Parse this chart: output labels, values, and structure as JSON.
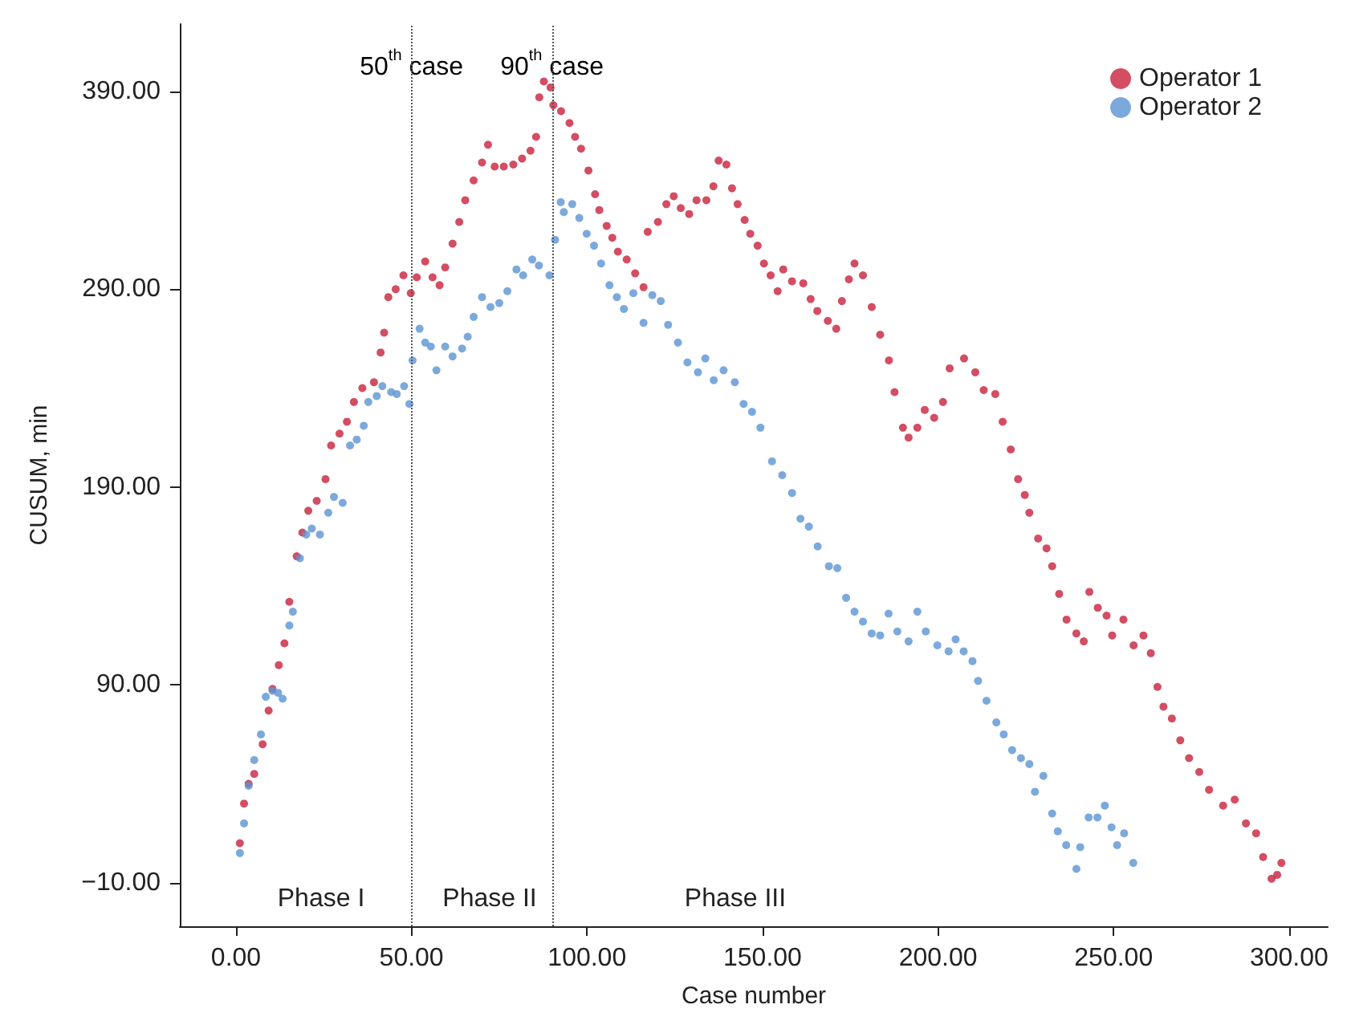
{
  "chart_data": {
    "type": "scatter",
    "xlabel": "Case number",
    "ylabel": "CUSUM, min",
    "xlim": [
      -16,
      311
    ],
    "ylim": [
      -32,
      424
    ],
    "xticks": [
      {
        "value": 0,
        "label": "0.00"
      },
      {
        "value": 50,
        "label": "50.00"
      },
      {
        "value": 100,
        "label": "100.00"
      },
      {
        "value": 150,
        "label": "150.00"
      },
      {
        "value": 200,
        "label": "200.00"
      },
      {
        "value": 250,
        "label": "250.00"
      },
      {
        "value": 300,
        "label": "300.00"
      }
    ],
    "yticks": [
      {
        "value": -10,
        "label": "−10.00"
      },
      {
        "value": 90,
        "label": "90.00"
      },
      {
        "value": 190,
        "label": "190.00"
      },
      {
        "value": 290,
        "label": "290.00"
      },
      {
        "value": 390,
        "label": "390.00"
      }
    ],
    "grid": false,
    "legend": "top right",
    "marker": "circle",
    "ref_lines": [
      {
        "axis": "x",
        "value": 50,
        "label": "50$^{th}$ case",
        "color": "#555555",
        "line_style": "dotted"
      },
      {
        "axis": "x",
        "value": 90,
        "label": "90$^{th}$ case",
        "color": "#555555",
        "line_style": "dotted"
      }
    ],
    "annotations": [
      "Phase I",
      "Phase II",
      "Phase III"
    ],
    "series": [
      {
        "name": "Operator 1",
        "color": "#c8203c",
        "x": [
          1.1,
          2.3,
          3.6,
          5.2,
          7.6,
          9.3,
          10.4,
          12.2,
          13.8,
          15.2,
          17.3,
          18.9,
          20.6,
          23,
          25.5,
          27.1,
          29.5,
          31.6,
          33.6,
          36,
          39.3,
          41.2,
          42.2,
          43.4,
          45.5,
          47.7,
          49.8,
          51.5,
          53.9,
          56,
          58,
          59.6,
          61.7,
          63.6,
          65.3,
          67.7,
          70.1,
          71.8,
          73.7,
          76.3,
          79,
          81.5,
          83.9,
          85.5,
          86.4,
          87.7,
          89.6,
          90.4,
          92.6,
          95,
          96.6,
          98.3,
          100.4,
          102.3,
          103.5,
          105.6,
          107.2,
          108.8,
          111.3,
          113.7,
          116.1,
          117.3,
          120.2,
          122.6,
          124.7,
          126.7,
          129.1,
          131.2,
          134,
          136,
          137.5,
          139.7,
          141.3,
          142.9,
          144.9,
          146.5,
          148.6,
          150.4,
          152.3,
          154.3,
          155.9,
          158.4,
          161.6,
          163.7,
          165.6,
          168.6,
          171,
          172.6,
          174.6,
          176.2,
          178.6,
          181.1,
          183.5,
          186,
          187.6,
          190,
          191.6,
          194.1,
          196.2,
          198.9,
          201.4,
          203.3,
          207.4,
          210.6,
          213,
          216.3,
          218.4,
          220.7,
          222.8,
          224.7,
          226,
          228.5,
          230.9,
          232.5,
          234.5,
          236.6,
          239.4,
          241.5,
          243.1,
          245.5,
          248,
          249.6,
          252.8,
          255.7,
          258.5,
          260.6,
          262.5,
          264.2,
          266.6,
          269,
          271.5,
          274.4,
          277.2,
          281.2,
          284.5,
          287.7,
          290.6,
          292.6,
          295,
          296.6,
          297.8
        ],
        "values": [
          10,
          30,
          40,
          45,
          60,
          77,
          88,
          100,
          111,
          132,
          155,
          167,
          178,
          183,
          194,
          211,
          217,
          223,
          233,
          240,
          243,
          258,
          268,
          286,
          290,
          297,
          288,
          296,
          304,
          296,
          292,
          301,
          313,
          324,
          335,
          345,
          354,
          363,
          352,
          352,
          353,
          356,
          360,
          367,
          387,
          395,
          392,
          383,
          380,
          374,
          367,
          361,
          350,
          338,
          330,
          322,
          316,
          309,
          305,
          298,
          291,
          319,
          324,
          333,
          337,
          331,
          328,
          335,
          335,
          342,
          355,
          353,
          341,
          333,
          325,
          318,
          312,
          303,
          297,
          289,
          300,
          294,
          293,
          285,
          279,
          274,
          270,
          284,
          295,
          303,
          297,
          281,
          267,
          254,
          238,
          220,
          215,
          220,
          229,
          225,
          233,
          250,
          255,
          248,
          239,
          237,
          223,
          209,
          194,
          186,
          177,
          164,
          159,
          150,
          136,
          123,
          116,
          112,
          137,
          129,
          125,
          115,
          123,
          110,
          115,
          106,
          89,
          79,
          73,
          62,
          53,
          46,
          37,
          29,
          32,
          20,
          15,
          3,
          -8,
          -6,
          0
        ]
      },
      {
        "name": "Operator 2",
        "color": "#5b93d3",
        "x": [
          1.1,
          2.3,
          3.6,
          5.2,
          7.1,
          8.5,
          10.4,
          12,
          13.3,
          15.2,
          16.2,
          18.2,
          20,
          21.6,
          23.9,
          26.3,
          27.9,
          30.4,
          32.5,
          34.4,
          36.4,
          37.7,
          40.1,
          41.7,
          44.2,
          45.8,
          47.9,
          49.4,
          50.3,
          52.3,
          53.9,
          55.5,
          57.1,
          59.6,
          61.7,
          64.4,
          66,
          67.7,
          70.1,
          72.5,
          75,
          77.3,
          79.9,
          81.8,
          84.4,
          86.3,
          89.3,
          90.9,
          92.5,
          93.4,
          95.8,
          97.8,
          99.9,
          102,
          104,
          106.4,
          108.5,
          110.5,
          113.2,
          116.1,
          118.6,
          121,
          123.1,
          125.9,
          128.6,
          131.6,
          133.7,
          136.1,
          138.9,
          142.1,
          144.6,
          147,
          149.4,
          152.7,
          155.6,
          158.4,
          160.8,
          163.2,
          165.7,
          168.9,
          171.3,
          173.8,
          176.2,
          178.6,
          181.1,
          183.5,
          185.9,
          188.4,
          191.6,
          194.1,
          196.5,
          199.8,
          203,
          205,
          207.3,
          209.8,
          211.4,
          213.8,
          216.6,
          218.7,
          221.1,
          223.6,
          226,
          227.6,
          230,
          232.5,
          234.1,
          236.5,
          239.4,
          240.5,
          242.9,
          245.4,
          247.5,
          249.4,
          251,
          253,
          255.6
        ],
        "values": [
          5,
          20,
          39,
          52,
          65,
          84,
          87,
          86,
          83,
          120,
          127,
          154,
          166,
          169,
          166,
          177,
          185,
          182,
          211,
          214,
          221,
          233,
          236,
          241,
          238,
          237,
          241,
          232,
          254,
          270,
          263,
          261,
          249,
          261,
          256,
          260,
          266,
          276,
          286,
          281,
          283,
          289,
          300,
          297,
          305,
          302,
          297,
          315,
          334,
          329,
          333,
          326,
          318,
          312,
          303,
          292,
          286,
          280,
          288,
          273,
          287,
          284,
          272,
          263,
          253,
          248,
          255,
          244,
          249,
          243,
          232,
          228,
          220,
          203,
          196,
          187,
          174,
          170,
          160,
          150,
          149,
          134,
          127,
          122,
          116,
          115,
          126,
          117,
          112,
          127,
          117,
          110,
          107,
          113,
          107,
          102,
          92,
          82,
          71,
          65,
          57,
          53,
          50,
          36,
          44,
          25,
          16,
          9,
          -3,
          8,
          23,
          23,
          29,
          18,
          9,
          15,
          0
        ]
      }
    ]
  }
}
